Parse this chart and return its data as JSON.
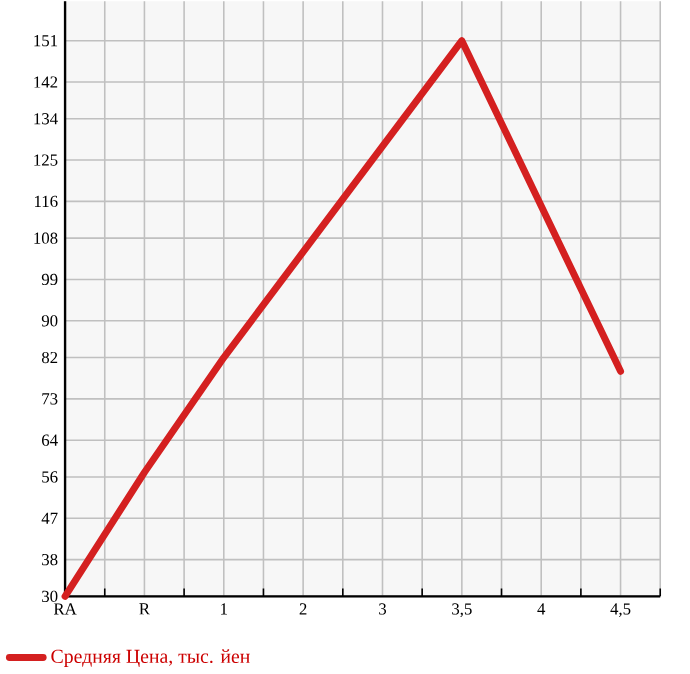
{
  "chart_data": {
    "type": "line",
    "categories": [
      "RA",
      "R",
      "1",
      "2",
      "3",
      "3,5",
      "4",
      "4,5"
    ],
    "series": [
      {
        "name": "Средняя Цена, тыс. йен",
        "color": "#d42020",
        "values": [
          30,
          57,
          82,
          105,
          128,
          151,
          115,
          79
        ]
      }
    ],
    "ylim": [
      30,
      159.6
    ],
    "yticks": [
      30,
      38,
      47,
      56,
      64,
      73,
      82,
      90,
      99,
      108,
      116,
      125,
      134,
      142,
      151
    ],
    "grid": true,
    "legend": "bottom"
  }
}
